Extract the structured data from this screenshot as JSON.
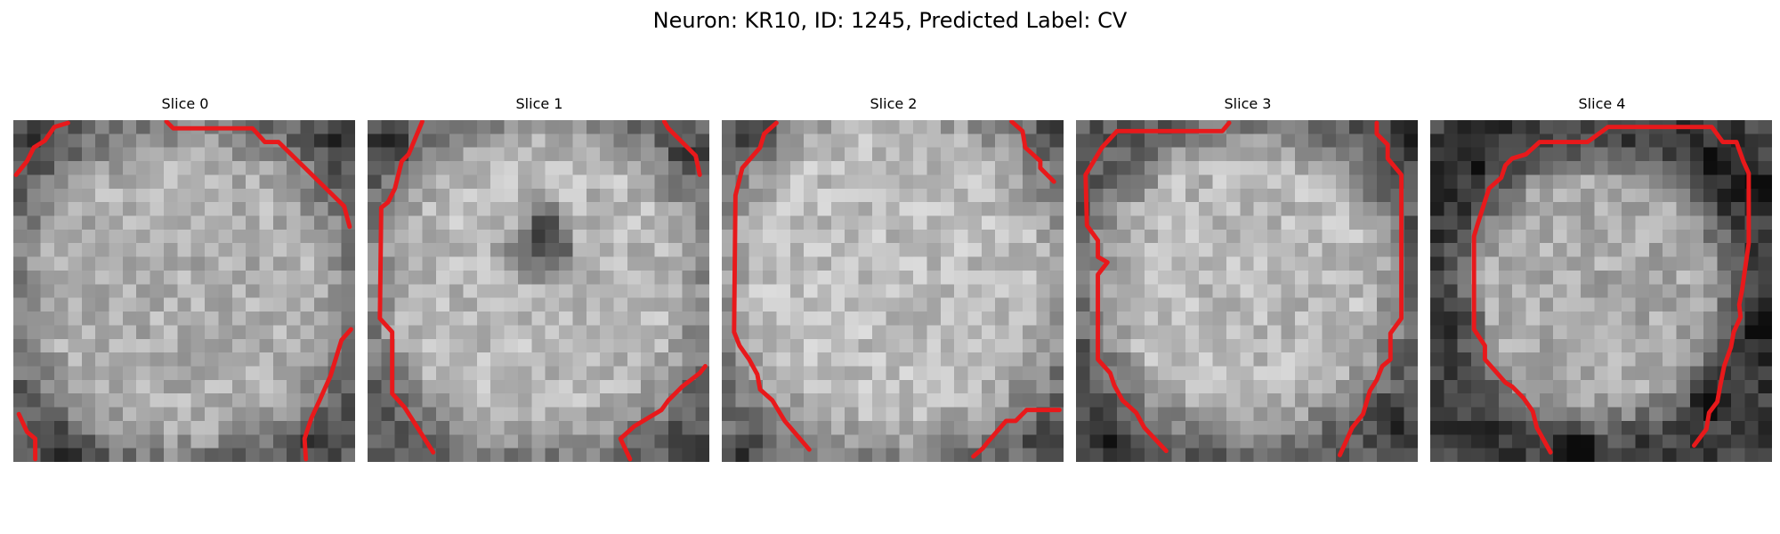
{
  "figure": {
    "title": "Neuron: KR10, ID: 1245, Predicted Label: CV",
    "contour_color": "#e8191b",
    "image_colormap": "grayscale"
  },
  "slices": [
    {
      "title": "Slice 0"
    },
    {
      "title": "Slice 1"
    },
    {
      "title": "Slice 2"
    },
    {
      "title": "Slice 3"
    },
    {
      "title": "Slice 4"
    }
  ]
}
